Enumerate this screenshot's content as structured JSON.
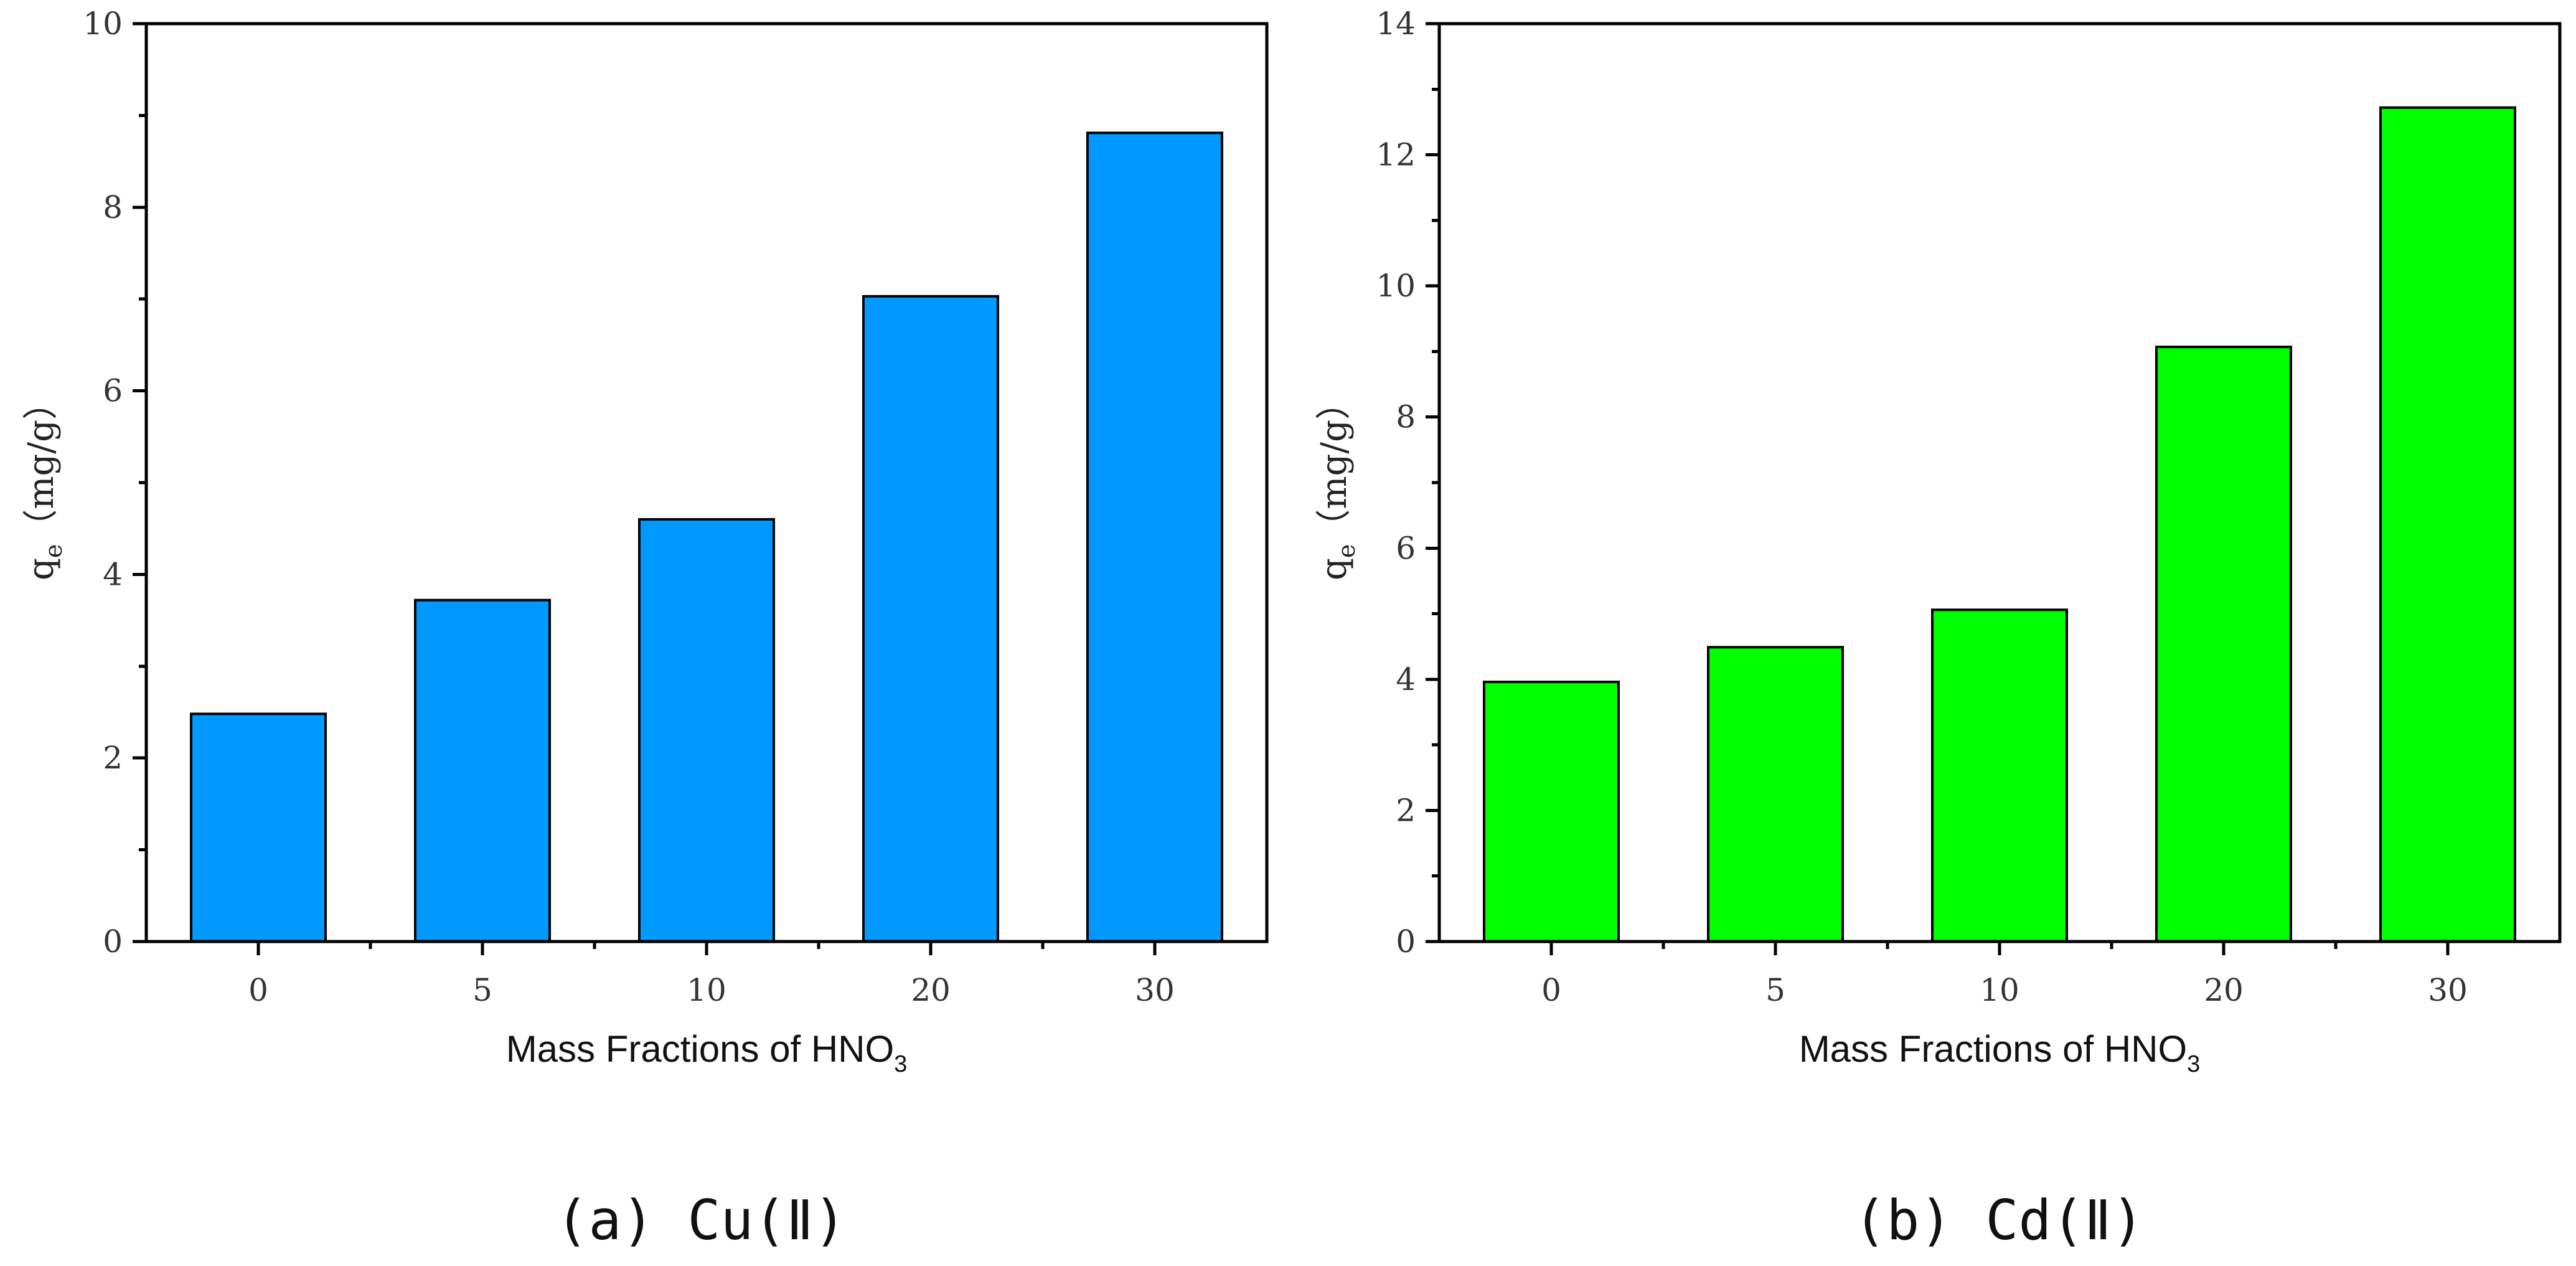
{
  "chart_data": [
    {
      "type": "bar",
      "caption": "(a) Cu(Ⅱ)",
      "categories": [
        "0",
        "5",
        "10",
        "20",
        "30"
      ],
      "values": [
        2.48,
        3.72,
        4.6,
        7.03,
        8.81
      ],
      "color": "#0099ff",
      "xlabel": "Mass Fractions of HNO",
      "xlabel_sub": "3",
      "ylabel": "q",
      "ylabel_sub": "e",
      "ylabel_unit": "（mg/g）",
      "ylim": [
        0,
        10
      ],
      "major_ticks": [
        0,
        2,
        4,
        6,
        8,
        10
      ],
      "minor_step": 1,
      "grid": false
    },
    {
      "type": "bar",
      "caption": "(b) Cd(Ⅱ)",
      "categories": [
        "0",
        "5",
        "10",
        "20",
        "30"
      ],
      "values": [
        3.96,
        4.49,
        5.06,
        9.07,
        12.72
      ],
      "color": "#00ff00",
      "xlabel": "Mass Fractions of HNO",
      "xlabel_sub": "3",
      "ylabel": "q",
      "ylabel_sub": "e",
      "ylabel_unit": "（mg/g）",
      "ylim": [
        0,
        14
      ],
      "major_ticks": [
        0,
        2,
        4,
        6,
        8,
        10,
        12,
        14
      ],
      "minor_step": 1,
      "grid": false
    }
  ]
}
